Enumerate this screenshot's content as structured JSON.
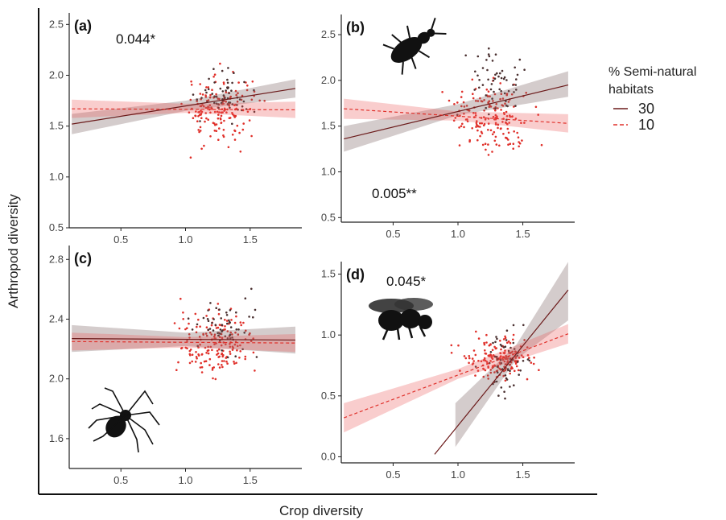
{
  "figure": {
    "xlabel": "Crop diversity",
    "ylabel": "Arthropod diversity",
    "legend": {
      "title_line1": "% Semi-natural",
      "title_line2": "habitats",
      "entries": [
        {
          "label": "30",
          "color": "#6b1a1a",
          "dash": "solid"
        },
        {
          "label": "10",
          "color": "#e0302a",
          "dash": "dashed"
        }
      ]
    }
  },
  "chart_data": [
    {
      "type": "scatter",
      "panel": "(a)",
      "annotation": "0.044*",
      "icon": "",
      "xlim": [
        0.1,
        1.9
      ],
      "ylim": [
        0.5,
        2.55
      ],
      "xticks": [
        "0.5",
        "1.0",
        "1.5"
      ],
      "yticks": [
        "0.5",
        "1.0",
        "1.5",
        "2.0",
        "2.5"
      ],
      "series": [
        {
          "name": "30",
          "fit": [
            [
              0.12,
              1.52
            ],
            [
              1.85,
              1.87
            ]
          ],
          "ci": [
            [
              0.12,
              1.42,
              1.62
            ],
            [
              1.0,
              1.65,
              1.75
            ],
            [
              1.85,
              1.78,
              1.96
            ]
          ],
          "points_center": [
            1.3,
            1.8
          ],
          "points_spread": [
            0.25,
            0.25
          ],
          "n": 55,
          "seed": 11
        },
        {
          "name": "10",
          "fit": [
            [
              0.12,
              1.67
            ],
            [
              1.85,
              1.66
            ]
          ],
          "ci": [
            [
              0.12,
              1.58,
              1.76
            ],
            [
              1.0,
              1.63,
              1.72
            ],
            [
              1.85,
              1.58,
              1.74
            ]
          ],
          "points_center": [
            1.25,
            1.65
          ],
          "points_spread": [
            0.3,
            0.35
          ],
          "n": 170,
          "seed": 12
        }
      ]
    },
    {
      "type": "scatter",
      "panel": "(b)",
      "annotation": "0.005**",
      "icon": "beetle",
      "xlim": [
        0.1,
        1.9
      ],
      "ylim": [
        0.45,
        2.65
      ],
      "xticks": [
        "0.5",
        "1.0",
        "1.5"
      ],
      "yticks": [
        "0.5",
        "1.0",
        "1.5",
        "2.0",
        "2.5"
      ],
      "series": [
        {
          "name": "30",
          "fit": [
            [
              0.12,
              1.36
            ],
            [
              1.85,
              1.95
            ]
          ],
          "ci": [
            [
              0.12,
              1.22,
              1.5
            ],
            [
              1.0,
              1.62,
              1.74
            ],
            [
              1.85,
              1.82,
              2.1
            ]
          ],
          "points_center": [
            1.3,
            1.95
          ],
          "points_spread": [
            0.25,
            0.35
          ],
          "n": 55,
          "seed": 21
        },
        {
          "name": "10",
          "fit": [
            [
              0.12,
              1.69
            ],
            [
              1.85,
              1.53
            ]
          ],
          "ci": [
            [
              0.12,
              1.58,
              1.8
            ],
            [
              1.0,
              1.56,
              1.66
            ],
            [
              1.85,
              1.43,
              1.63
            ]
          ],
          "points_center": [
            1.25,
            1.6
          ],
          "points_spread": [
            0.3,
            0.4
          ],
          "n": 170,
          "seed": 22
        }
      ]
    },
    {
      "type": "scatter",
      "panel": "(c)",
      "annotation": "",
      "icon": "spider",
      "xlim": [
        0.1,
        1.9
      ],
      "ylim": [
        1.4,
        2.85
      ],
      "xticks": [
        "0.5",
        "1.0",
        "1.5"
      ],
      "yticks": [
        "1.6",
        "2.0",
        "2.4",
        "2.8"
      ],
      "series": [
        {
          "name": "30",
          "fit": [
            [
              0.12,
              2.27
            ],
            [
              1.85,
              2.26
            ]
          ],
          "ci": [
            [
              0.12,
              2.18,
              2.36
            ],
            [
              1.0,
              2.22,
              2.31
            ],
            [
              1.85,
              2.17,
              2.35
            ]
          ],
          "points_center": [
            1.3,
            2.35
          ],
          "points_spread": [
            0.25,
            0.2
          ],
          "n": 55,
          "seed": 31
        },
        {
          "name": "10",
          "fit": [
            [
              0.12,
              2.25
            ],
            [
              1.85,
              2.24
            ]
          ],
          "ci": [
            [
              0.12,
              2.19,
              2.31
            ],
            [
              1.0,
              2.21,
              2.28
            ],
            [
              1.85,
              2.18,
              2.3
            ]
          ],
          "points_center": [
            1.25,
            2.25
          ],
          "points_spread": [
            0.3,
            0.22
          ],
          "n": 170,
          "seed": 32
        }
      ]
    },
    {
      "type": "scatter",
      "panel": "(d)",
      "annotation": "0.045*",
      "icon": "bee",
      "xlim": [
        0.1,
        1.9
      ],
      "ylim": [
        -0.05,
        1.55
      ],
      "xticks": [
        "0.5",
        "1.0",
        "1.5"
      ],
      "yticks": [
        "0.0",
        "0.5",
        "1.0",
        "1.5"
      ],
      "series": [
        {
          "name": "30",
          "fit": [
            [
              0.82,
              0.02
            ],
            [
              1.85,
              1.37
            ]
          ],
          "ci": [
            [
              0.98,
              0.08,
              0.44
            ],
            [
              1.45,
              0.8,
              0.92
            ],
            [
              1.85,
              1.12,
              1.6
            ]
          ],
          "points_center": [
            1.35,
            0.75
          ],
          "points_spread": [
            0.2,
            0.3
          ],
          "n": 55,
          "seed": 41
        },
        {
          "name": "10",
          "fit": [
            [
              0.12,
              0.32
            ],
            [
              1.85,
              1.01
            ]
          ],
          "ci": [
            [
              0.12,
              0.2,
              0.44
            ],
            [
              1.0,
              0.64,
              0.72
            ],
            [
              1.85,
              0.93,
              1.09
            ]
          ],
          "points_center": [
            1.3,
            0.8
          ],
          "points_spread": [
            0.28,
            0.2
          ],
          "n": 170,
          "seed": 42
        }
      ]
    }
  ]
}
